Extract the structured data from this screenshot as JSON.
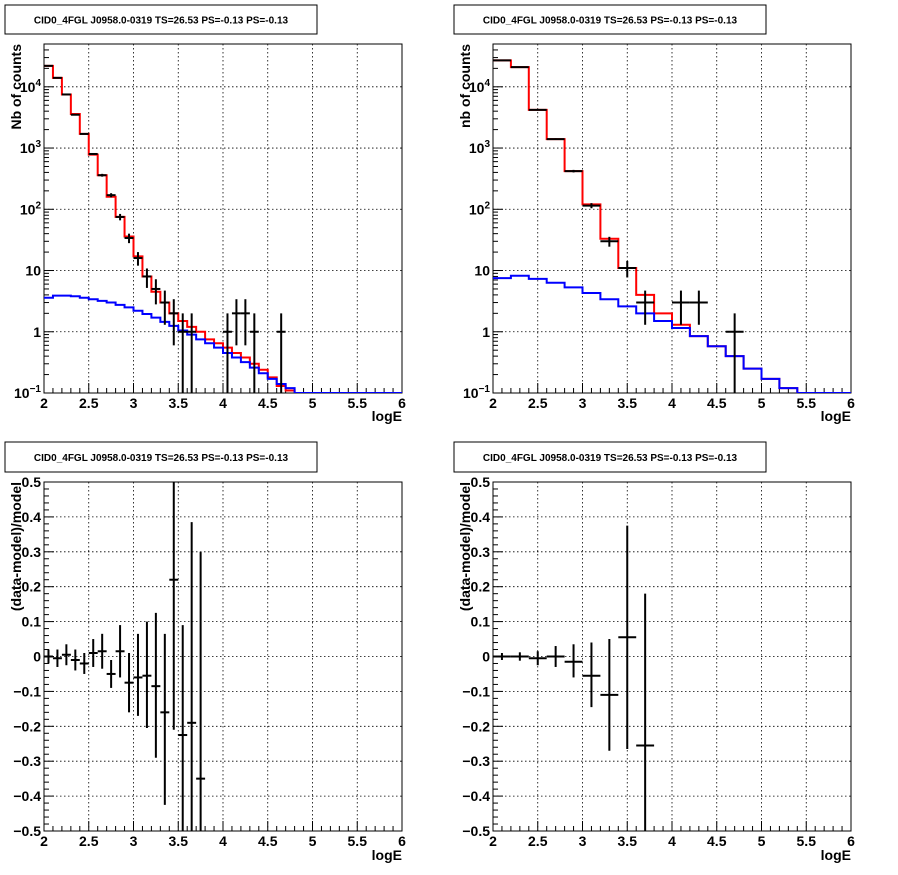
{
  "chart_data": [
    {
      "type": "line",
      "title": "CID0_4FGL J0958.0-0319 TS=26.53 PS=-0.13 PS=-0.13",
      "xlabel": "logE",
      "ylabel": "Nb of counts",
      "xlim": [
        2,
        6
      ],
      "ylim": [
        0.1,
        50000
      ],
      "y_scale": "log",
      "grid": true,
      "x_ticks": [
        "2",
        "2.5",
        "3",
        "3.5",
        "4",
        "4.5",
        "5",
        "5.5",
        "6"
      ],
      "y_ticks": [
        {
          "value": 0.1,
          "base": "10",
          "exp": "−1"
        },
        {
          "value": 1,
          "label": "1"
        },
        {
          "value": 10,
          "label": "10"
        },
        {
          "value": 100,
          "base": "10",
          "exp": "2"
        },
        {
          "value": 1000,
          "base": "10",
          "exp": "3"
        },
        {
          "value": 10000,
          "base": "10",
          "exp": "4"
        }
      ],
      "bin_edges": [
        2.0,
        2.1,
        2.2,
        2.3,
        2.4,
        2.5,
        2.6,
        2.7,
        2.8,
        2.9,
        3.0,
        3.1,
        3.2,
        3.3,
        3.4,
        3.5,
        3.6,
        3.7,
        3.8,
        3.9,
        4.0,
        4.1,
        4.2,
        4.3,
        4.4,
        4.5,
        4.6,
        4.7,
        4.8,
        4.9,
        5.0,
        5.1,
        5.2,
        5.3,
        5.4,
        5.5,
        5.6,
        5.7,
        5.8,
        5.9,
        6.0
      ],
      "series": [
        {
          "color": "#ff0000",
          "style": "step",
          "values": [
            22000,
            14000,
            7500,
            3600,
            1700,
            780,
            360,
            160,
            75,
            36,
            17,
            8,
            4.5,
            3,
            2,
            1.5,
            1.2,
            1,
            0.75,
            0.65,
            0.55,
            0.45,
            0.38,
            0.3,
            0.24,
            0.18,
            0.13,
            0.11,
            0.1,
            0.1,
            0.1,
            0.1,
            0.1,
            0.1,
            0.1,
            0.1,
            0.1,
            0.1,
            0.1,
            0.1
          ]
        },
        {
          "color": "#0000ff",
          "style": "step",
          "values": [
            3.6,
            3.9,
            3.9,
            3.8,
            3.6,
            3.4,
            3.2,
            3.0,
            2.75,
            2.5,
            2.2,
            1.95,
            1.7,
            1.45,
            1.25,
            1.05,
            0.9,
            0.75,
            0.65,
            0.55,
            0.45,
            0.38,
            0.32,
            0.26,
            0.21,
            0.17,
            0.14,
            0.12,
            0.1,
            0.1,
            0.1,
            0.1,
            0.1,
            0.1,
            0.1,
            0.1,
            0.1,
            0.1,
            0.1,
            0.1
          ]
        }
      ],
      "points": [
        {
          "x": 2.05,
          "y": 22000,
          "lo": 21700,
          "hi": 22300
        },
        {
          "x": 2.15,
          "y": 14000,
          "lo": 13800,
          "hi": 14200
        },
        {
          "x": 2.25,
          "y": 7500,
          "lo": 7400,
          "hi": 7600
        },
        {
          "x": 2.35,
          "y": 3500,
          "lo": 3440,
          "hi": 3560
        },
        {
          "x": 2.45,
          "y": 1700,
          "lo": 1660,
          "hi": 1740
        },
        {
          "x": 2.55,
          "y": 800,
          "lo": 772,
          "hi": 828
        },
        {
          "x": 2.65,
          "y": 360,
          "lo": 341,
          "hi": 379
        },
        {
          "x": 2.75,
          "y": 170,
          "lo": 157,
          "hi": 183
        },
        {
          "x": 2.85,
          "y": 75,
          "lo": 66,
          "hi": 84
        },
        {
          "x": 2.95,
          "y": 34,
          "lo": 28,
          "hi": 40
        },
        {
          "x": 3.05,
          "y": 16,
          "lo": 12,
          "hi": 20
        },
        {
          "x": 3.15,
          "y": 8,
          "lo": 5.2,
          "hi": 10.8
        },
        {
          "x": 3.25,
          "y": 5,
          "lo": 2.8,
          "hi": 7.2
        },
        {
          "x": 3.35,
          "y": 3,
          "lo": 1.3,
          "hi": 4.7
        },
        {
          "x": 3.45,
          "y": 2,
          "lo": 0.6,
          "hi": 3.4
        },
        {
          "x": 3.55,
          "y": 1,
          "lo": 0.1,
          "hi": 2
        },
        {
          "x": 3.65,
          "y": 1,
          "lo": 0.1,
          "hi": 2
        },
        {
          "x": 4.05,
          "y": 1,
          "lo": 0.1,
          "hi": 2
        },
        {
          "x": 4.15,
          "y": 2,
          "lo": 0.6,
          "hi": 3.4
        },
        {
          "x": 4.25,
          "y": 2,
          "lo": 0.6,
          "hi": 3.4
        },
        {
          "x": 4.35,
          "y": 1,
          "lo": 0.1,
          "hi": 2
        },
        {
          "x": 4.65,
          "y": 1,
          "lo": 0.1,
          "hi": 2
        }
      ],
      "bin_half_width": 0.05
    },
    {
      "type": "line",
      "title": "CID0_4FGL J0958.0-0319 TS=26.53 PS=-0.13 PS=-0.13",
      "xlabel": "logE",
      "ylabel": "nb of counts",
      "xlim": [
        2,
        6
      ],
      "ylim": [
        0.1,
        50000
      ],
      "y_scale": "log",
      "grid": true,
      "x_ticks": [
        "2",
        "2.5",
        "3",
        "3.5",
        "4",
        "4.5",
        "5",
        "5.5",
        "6"
      ],
      "y_ticks": [
        {
          "value": 0.1,
          "base": "10",
          "exp": "−1"
        },
        {
          "value": 1,
          "label": "1"
        },
        {
          "value": 10,
          "label": "10"
        },
        {
          "value": 100,
          "base": "10",
          "exp": "2"
        },
        {
          "value": 1000,
          "base": "10",
          "exp": "3"
        },
        {
          "value": 10000,
          "base": "10",
          "exp": "4"
        }
      ],
      "bin_edges": [
        2.0,
        2.2,
        2.4,
        2.6,
        2.8,
        3.0,
        3.2,
        3.4,
        3.6,
        3.8,
        4.0,
        4.2,
        4.4,
        4.6,
        4.8,
        5.0,
        5.2,
        5.4,
        5.6,
        5.8,
        6.0
      ],
      "series": [
        {
          "color": "#ff0000",
          "style": "step",
          "values": [
            27000,
            21000,
            4200,
            1400,
            420,
            120,
            33,
            11,
            4,
            2,
            1.3,
            0.85,
            0.58,
            0.4,
            0.25,
            0.17,
            0.12,
            0.1,
            0.1,
            0.1
          ]
        },
        {
          "color": "#0000ff",
          "style": "step",
          "values": [
            7.5,
            8.2,
            7.3,
            6.3,
            5.3,
            4.3,
            3.4,
            2.6,
            2,
            1.5,
            1.15,
            0.85,
            0.58,
            0.4,
            0.25,
            0.17,
            0.12,
            0.1,
            0.1,
            0.1
          ]
        }
      ],
      "points": [
        {
          "x": 2.1,
          "y": 27000,
          "lo": 26700,
          "hi": 27300
        },
        {
          "x": 2.3,
          "y": 21000,
          "lo": 20700,
          "hi": 21300
        },
        {
          "x": 2.5,
          "y": 4200,
          "lo": 4100,
          "hi": 4300
        },
        {
          "x": 2.7,
          "y": 1400,
          "lo": 1360,
          "hi": 1440
        },
        {
          "x": 2.9,
          "y": 420,
          "lo": 400,
          "hi": 440
        },
        {
          "x": 3.1,
          "y": 115,
          "lo": 104,
          "hi": 126
        },
        {
          "x": 3.3,
          "y": 30,
          "lo": 24.5,
          "hi": 35.5
        },
        {
          "x": 3.5,
          "y": 11,
          "lo": 7.7,
          "hi": 14.3
        },
        {
          "x": 3.7,
          "y": 3,
          "lo": 1.3,
          "hi": 4.7
        },
        {
          "x": 4.1,
          "y": 3,
          "lo": 1.3,
          "hi": 4.7
        },
        {
          "x": 4.3,
          "y": 3,
          "lo": 1.3,
          "hi": 4.7
        },
        {
          "x": 4.7,
          "y": 1,
          "lo": 0.1,
          "hi": 2
        }
      ],
      "bin_half_width": 0.1
    },
    {
      "type": "scatter",
      "title": "CID0_4FGL J0958.0-0319 TS=26.53 PS=-0.13 PS=-0.13",
      "xlabel": "logE",
      "ylabel": "(data-model)/model",
      "xlim": [
        2,
        6
      ],
      "ylim": [
        -0.5,
        0.5
      ],
      "y_scale": "linear",
      "grid": true,
      "x_ticks": [
        "2",
        "2.5",
        "3",
        "3.5",
        "4",
        "4.5",
        "5",
        "5.5",
        "6"
      ],
      "y_ticks": [
        {
          "value": 0.5,
          "label": "0.5"
        },
        {
          "value": 0.4,
          "label": "0.4"
        },
        {
          "value": 0.3,
          "label": "0.3"
        },
        {
          "value": 0.2,
          "label": "0.2"
        },
        {
          "value": 0.1,
          "label": "0.1"
        },
        {
          "value": 0,
          "label": "0"
        },
        {
          "value": -0.1,
          "label": "−0.1"
        },
        {
          "value": -0.2,
          "label": "−0.2"
        },
        {
          "value": -0.3,
          "label": "−0.3"
        },
        {
          "value": -0.4,
          "label": "−0.4"
        },
        {
          "value": -0.5,
          "label": "−0.5"
        }
      ],
      "points": [
        {
          "x": 2.05,
          "y": 0.0,
          "lo": -0.02,
          "hi": 0.02
        },
        {
          "x": 2.15,
          "y": -0.005,
          "lo": -0.03,
          "hi": 0.02
        },
        {
          "x": 2.25,
          "y": 0.005,
          "lo": -0.025,
          "hi": 0.035
        },
        {
          "x": 2.35,
          "y": -0.01,
          "lo": -0.04,
          "hi": 0.02
        },
        {
          "x": 2.45,
          "y": -0.02,
          "lo": -0.05,
          "hi": 0.01
        },
        {
          "x": 2.55,
          "y": 0.01,
          "lo": -0.03,
          "hi": 0.05
        },
        {
          "x": 2.65,
          "y": 0.015,
          "lo": -0.035,
          "hi": 0.065
        },
        {
          "x": 2.75,
          "y": -0.05,
          "lo": -0.09,
          "hi": -0.01
        },
        {
          "x": 2.85,
          "y": 0.015,
          "lo": -0.06,
          "hi": 0.09
        },
        {
          "x": 2.95,
          "y": -0.075,
          "lo": -0.16,
          "hi": 0.01
        },
        {
          "x": 3.05,
          "y": -0.06,
          "lo": -0.17,
          "hi": 0.065
        },
        {
          "x": 3.15,
          "y": -0.055,
          "lo": -0.205,
          "hi": 0.1
        },
        {
          "x": 3.25,
          "y": -0.085,
          "lo": -0.29,
          "hi": 0.125
        },
        {
          "x": 3.35,
          "y": -0.16,
          "lo": -0.425,
          "hi": 0.065
        },
        {
          "x": 3.45,
          "y": 0.22,
          "lo": -0.21,
          "hi": 0.5
        },
        {
          "x": 3.55,
          "y": -0.225,
          "lo": -0.5,
          "hi": 0.09
        },
        {
          "x": 3.65,
          "y": -0.19,
          "lo": -0.5,
          "hi": 0.385
        },
        {
          "x": 3.75,
          "y": -0.35,
          "lo": -0.5,
          "hi": 0.3
        }
      ],
      "bin_half_width": 0.05
    },
    {
      "type": "scatter",
      "title": "CID0_4FGL J0958.0-0319 TS=26.53 PS=-0.13 PS=-0.13",
      "xlabel": "logE",
      "ylabel": "(data-model)/model",
      "xlim": [
        2,
        6
      ],
      "ylim": [
        -0.5,
        0.5
      ],
      "y_scale": "linear",
      "grid": true,
      "x_ticks": [
        "2",
        "2.5",
        "3",
        "3.5",
        "4",
        "4.5",
        "5",
        "5.5",
        "6"
      ],
      "y_ticks": [
        {
          "value": 0.5,
          "label": "0.5"
        },
        {
          "value": 0.4,
          "label": "0.4"
        },
        {
          "value": 0.3,
          "label": "0.3"
        },
        {
          "value": 0.2,
          "label": "0.2"
        },
        {
          "value": 0.1,
          "label": "0.1"
        },
        {
          "value": 0,
          "label": "0"
        },
        {
          "value": -0.1,
          "label": "−0.1"
        },
        {
          "value": -0.2,
          "label": "−0.2"
        },
        {
          "value": -0.3,
          "label": "−0.3"
        },
        {
          "value": -0.4,
          "label": "−0.4"
        },
        {
          "value": -0.5,
          "label": "−0.5"
        }
      ],
      "points": [
        {
          "x": 2.1,
          "y": 0.0,
          "lo": -0.01,
          "hi": 0.01
        },
        {
          "x": 2.3,
          "y": 0.0,
          "lo": -0.012,
          "hi": 0.012
        },
        {
          "x": 2.5,
          "y": -0.005,
          "lo": -0.025,
          "hi": 0.015
        },
        {
          "x": 2.7,
          "y": 0.0,
          "lo": -0.03,
          "hi": 0.03
        },
        {
          "x": 2.9,
          "y": -0.015,
          "lo": -0.06,
          "hi": 0.035
        },
        {
          "x": 3.1,
          "y": -0.055,
          "lo": -0.145,
          "hi": 0.04
        },
        {
          "x": 3.3,
          "y": -0.11,
          "lo": -0.27,
          "hi": 0.05
        },
        {
          "x": 3.5,
          "y": 0.055,
          "lo": -0.265,
          "hi": 0.375
        },
        {
          "x": 3.7,
          "y": -0.255,
          "lo": -0.5,
          "hi": 0.18
        }
      ],
      "bin_half_width": 0.1
    }
  ]
}
